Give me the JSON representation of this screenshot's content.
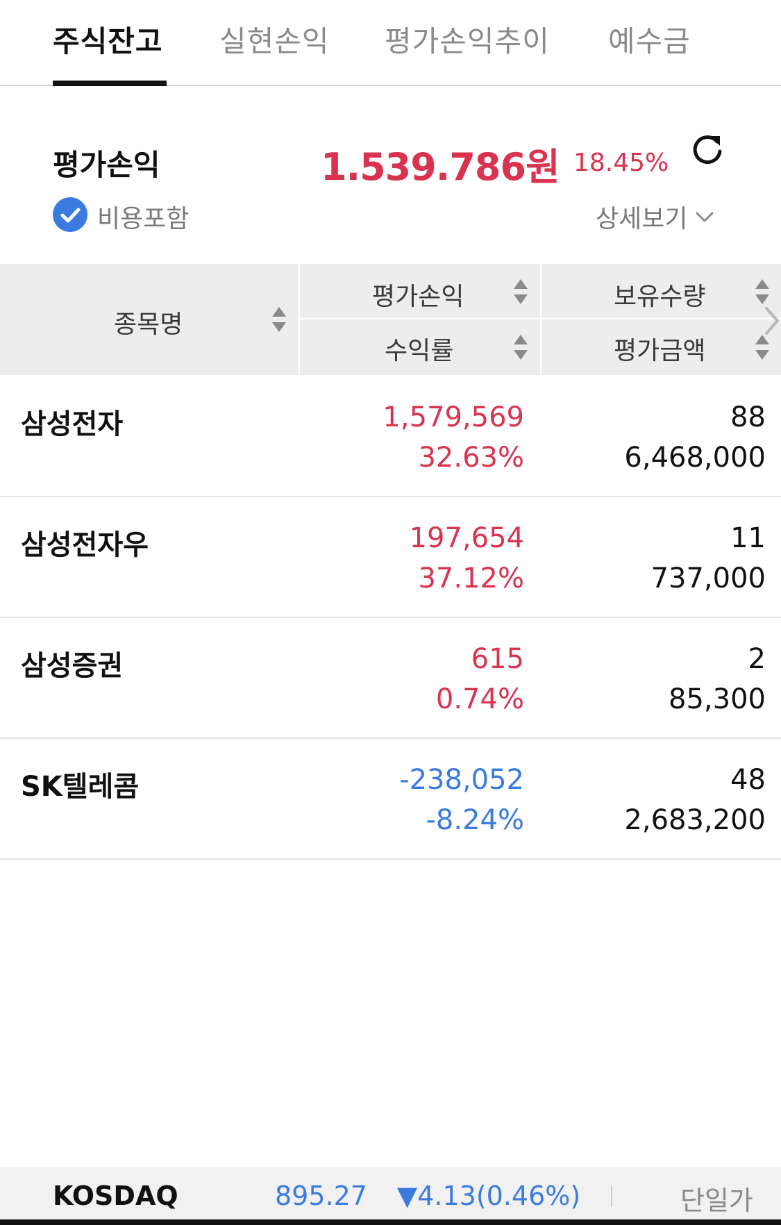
{
  "tabs": [
    {
      "label": "주식잔고",
      "active": true
    },
    {
      "label": "실현손익",
      "active": false
    },
    {
      "label": "평가손익추이",
      "active": false
    },
    {
      "label": "예수금",
      "active": false
    }
  ],
  "summary": {
    "label": "평가손익",
    "amount": "1.539.786원",
    "rate": "18.45%",
    "include_cost_label": "비용포함",
    "include_cost_checked": true,
    "detail_label": "상세보기"
  },
  "table": {
    "headers": {
      "name": "종목명",
      "pl": "평가손익",
      "rate": "수익률",
      "qty": "보유수량",
      "amount": "평가금액"
    },
    "rows": [
      {
        "name": "삼성전자",
        "pl": "1,579,569",
        "rate": "32.63%",
        "qty": "88",
        "amount": "6,468,000",
        "trend": "up"
      },
      {
        "name": "삼성전자우",
        "pl": "197,654",
        "rate": "37.12%",
        "qty": "11",
        "amount": "737,000",
        "trend": "up"
      },
      {
        "name": "삼성증권",
        "pl": "615",
        "rate": "0.74%",
        "qty": "2",
        "amount": "85,300",
        "trend": "up"
      },
      {
        "name": "SK텔레콤",
        "pl": "-238,052",
        "rate": "-8.24%",
        "qty": "48",
        "amount": "2,683,200",
        "trend": "down"
      }
    ]
  },
  "ticker": {
    "name": "KOSDAQ",
    "value": "895.27",
    "change": "▼4.13(0.46%)",
    "mode": "단일가"
  },
  "colors": {
    "up": "#d93350",
    "down": "#3b7be0",
    "check": "#3b7be0"
  },
  "icons": {
    "refresh": "refresh-icon",
    "check": "check-icon",
    "detail": "chevron-down-icon",
    "sort": "sort-arrows-icon",
    "scroll": "chevron-right-icon"
  }
}
